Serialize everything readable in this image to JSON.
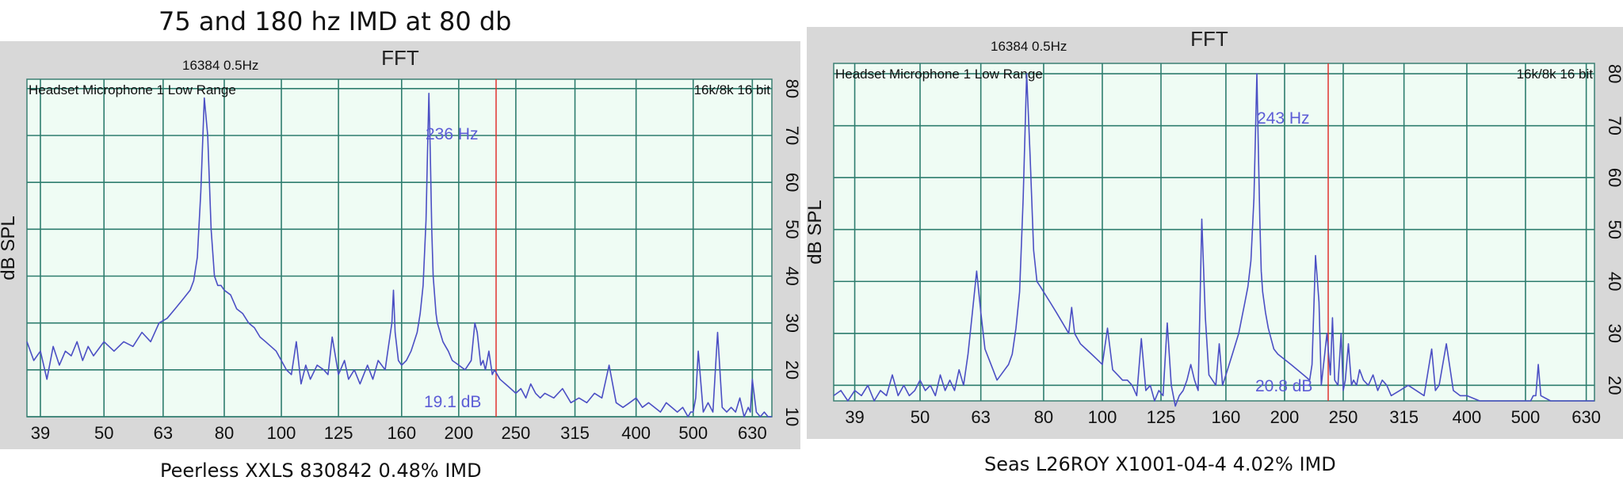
{
  "title": "75 and 180 hz IMD at 80 db",
  "chart_data": [
    {
      "type": "line",
      "title": "FFT",
      "fft_info": "16384  0.5Hz",
      "device": "Headset Microphone 1 Low Range",
      "format": "16k/8k 16 bit",
      "ylabel": "dB SPL",
      "x_scale": "log",
      "xlim": [
        37,
        680
      ],
      "ylim": [
        10,
        82
      ],
      "x_ticks": [
        "39",
        "50",
        "63",
        "80",
        "100",
        "125",
        "160",
        "200",
        "250",
        "315",
        "400",
        "500",
        "630"
      ],
      "y_ticks": [
        "10",
        "20",
        "30",
        "40",
        "50",
        "60",
        "70",
        "80"
      ],
      "grid": true,
      "marker_freq_label": "236 Hz",
      "marker_level_label": "19.1 dB",
      "caption": "Peerless XXLS 830842  0.48% IMD",
      "series": [
        {
          "x": [
            37,
            38,
            39,
            40,
            41,
            42,
            43,
            44,
            45,
            46,
            47,
            48,
            50,
            52,
            54,
            56,
            58,
            60,
            62,
            64,
            66,
            68,
            70,
            71,
            72,
            73,
            74,
            75,
            76,
            77,
            78,
            79,
            80,
            82,
            84,
            86,
            88,
            90,
            92,
            94,
            96,
            98,
            100,
            102,
            104,
            106,
            108,
            110,
            112,
            115,
            118,
            120,
            122,
            125,
            128,
            130,
            133,
            136,
            140,
            143,
            146,
            150,
            152,
            154,
            155,
            156,
            158,
            160,
            163,
            166,
            168,
            170,
            172,
            174,
            176,
            177,
            178,
            179,
            180,
            181,
            182,
            183,
            184,
            186,
            188,
            190,
            192,
            195,
            200,
            205,
            210,
            213,
            215,
            218,
            220,
            222,
            225,
            228,
            230,
            235,
            240,
            245,
            250,
            255,
            260,
            265,
            270,
            275,
            280,
            290,
            300,
            310,
            320,
            330,
            340,
            350,
            360,
            370,
            380,
            390,
            400,
            410,
            420,
            430,
            440,
            450,
            460,
            470,
            480,
            490,
            495,
            500,
            505,
            510,
            520,
            530,
            540,
            550,
            560,
            570,
            580,
            590,
            600,
            610,
            615,
            620,
            625,
            630,
            640,
            650,
            660,
            670,
            680
          ],
          "y": [
            26,
            22,
            24,
            18,
            25,
            21,
            24,
            23,
            26,
            22,
            25,
            23,
            26,
            24,
            26,
            25,
            28,
            26,
            30,
            31,
            33,
            35,
            37,
            39,
            44,
            58,
            78,
            70,
            50,
            40,
            38,
            38,
            37,
            36,
            33,
            32,
            30,
            29,
            27,
            26,
            25,
            24,
            22,
            20,
            19,
            26,
            17,
            21,
            18,
            21,
            20,
            19,
            27,
            19,
            22,
            18,
            20,
            17,
            21,
            18,
            22,
            20,
            25,
            30,
            37,
            28,
            22,
            21,
            22,
            24,
            26,
            28,
            32,
            38,
            52,
            66,
            79,
            66,
            50,
            40,
            36,
            32,
            30,
            28,
            26,
            25,
            24,
            22,
            21,
            20,
            22,
            30,
            28,
            21,
            22,
            20,
            24,
            19,
            20,
            18,
            17,
            16,
            15,
            16,
            14,
            17,
            15,
            14,
            15,
            14,
            16,
            13,
            14,
            13,
            15,
            14,
            21,
            13,
            12,
            13,
            14,
            12,
            13,
            12,
            11,
            13,
            12,
            11,
            12,
            10,
            11,
            11,
            14,
            24,
            11,
            13,
            11,
            28,
            12,
            11,
            12,
            11,
            14,
            10,
            11,
            12,
            11,
            18,
            11,
            10,
            11,
            10,
            10
          ]
        }
      ]
    },
    {
      "type": "line",
      "title": "FFT",
      "fft_info": "16384  0.5Hz",
      "device": "Headset Microphone 1 Low Range",
      "format": "16k/8k 16 bit",
      "ylabel": "dB SPL",
      "x_scale": "log",
      "xlim": [
        36,
        650
      ],
      "ylim": [
        17,
        82
      ],
      "x_ticks": [
        "39",
        "50",
        "63",
        "80",
        "100",
        "125",
        "160",
        "200",
        "250",
        "315",
        "400",
        "500",
        "630"
      ],
      "y_ticks": [
        "20",
        "30",
        "40",
        "50",
        "60",
        "70",
        "80"
      ],
      "grid": true,
      "marker_freq_label": "243 Hz",
      "marker_level_label": "20.8 dB",
      "caption": "Seas L26ROY X1001-04-4  4.02% IMD",
      "series": [
        {
          "x": [
            36,
            37,
            38,
            39,
            40,
            41,
            42,
            43,
            44,
            45,
            46,
            47,
            48,
            49,
            50,
            51,
            52,
            53,
            54,
            55,
            56,
            57,
            58,
            59,
            60,
            61,
            62,
            63,
            64,
            65,
            66,
            67,
            68,
            70,
            71,
            72,
            73,
            74,
            75,
            76,
            77,
            78,
            79,
            80,
            82,
            84,
            86,
            88,
            89,
            90,
            92,
            94,
            96,
            98,
            100,
            102,
            104,
            106,
            108,
            110,
            112,
            114,
            116,
            118,
            120,
            122,
            124,
            126,
            128,
            130,
            132,
            134,
            136,
            138,
            140,
            142,
            144,
            146,
            148,
            150,
            152,
            154,
            156,
            158,
            160,
            162,
            164,
            166,
            168,
            170,
            172,
            174,
            176,
            178,
            180,
            181,
            182,
            183,
            184,
            186,
            188,
            190,
            192,
            195,
            200,
            205,
            210,
            215,
            220,
            222,
            225,
            228,
            230,
            233,
            235,
            238,
            240,
            242,
            245,
            248,
            250,
            252,
            255,
            258,
            260,
            263,
            266,
            270,
            275,
            280,
            285,
            290,
            295,
            300,
            310,
            320,
            330,
            340,
            350,
            355,
            360,
            370,
            380,
            390,
            400,
            420,
            440,
            460,
            480,
            500,
            510,
            515,
            520,
            525,
            530,
            550,
            570,
            600,
            630,
            650
          ],
          "y": [
            18,
            19,
            17,
            19,
            18,
            20,
            17,
            19,
            18,
            22,
            18,
            20,
            18,
            19,
            21,
            19,
            20,
            18,
            22,
            19,
            21,
            19,
            23,
            20,
            26,
            34,
            42,
            34,
            27,
            25,
            23,
            21,
            22,
            24,
            26,
            31,
            38,
            56,
            80,
            64,
            46,
            40,
            39,
            38,
            36,
            34,
            32,
            30,
            35,
            30,
            28,
            27,
            26,
            25,
            24,
            31,
            23,
            22,
            21,
            21,
            20,
            18,
            29,
            19,
            20,
            17,
            19,
            18,
            32,
            20,
            16,
            18,
            19,
            21,
            24,
            21,
            19,
            52,
            33,
            22,
            21,
            20,
            28,
            20,
            22,
            24,
            26,
            28,
            30,
            33,
            36,
            39,
            44,
            56,
            80,
            66,
            52,
            42,
            38,
            34,
            31,
            29,
            27,
            26,
            25,
            24,
            23,
            22,
            21,
            24,
            45,
            36,
            20,
            26,
            30,
            22,
            33,
            21,
            20,
            30,
            19,
            21,
            28,
            20,
            21,
            20,
            23,
            21,
            20,
            22,
            19,
            21,
            20,
            18,
            19,
            20,
            19,
            18,
            27,
            19,
            20,
            28,
            19,
            18,
            18,
            17,
            17,
            17,
            17,
            17,
            17,
            18,
            18,
            24,
            18,
            17,
            17,
            17,
            17,
            17
          ]
        }
      ]
    }
  ]
}
